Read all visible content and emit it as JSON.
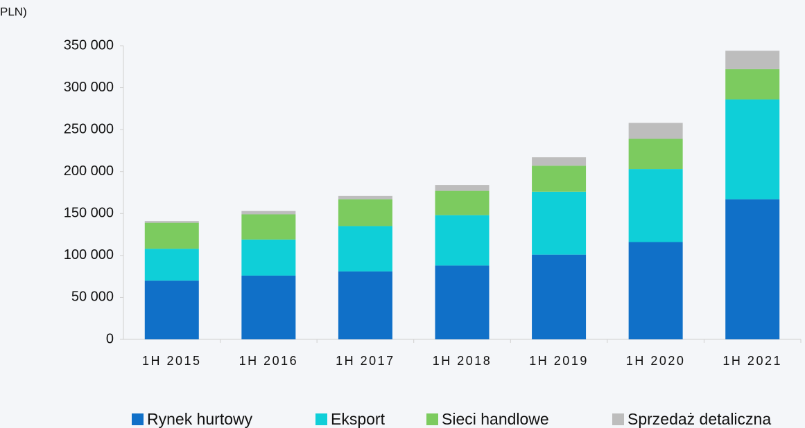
{
  "chart_data": {
    "type": "stacked_bar",
    "title": "PLN)",
    "categories": [
      "1H 2015",
      "1H 2016",
      "1H 2017",
      "1H 2018",
      "1H 2019",
      "1H 2020",
      "1H 2021"
    ],
    "series": [
      {
        "name": "Rynek hurtowy",
        "color": "#1070c8",
        "values": [
          70000,
          76000,
          81000,
          88000,
          101000,
          116000,
          167000
        ]
      },
      {
        "name": "Eksport",
        "color": "#0fcfd8",
        "values": [
          38000,
          43000,
          54000,
          60000,
          75000,
          87000,
          119000
        ]
      },
      {
        "name": "Sieci handlowe",
        "color": "#7ccb5f",
        "values": [
          31000,
          30000,
          32000,
          29000,
          31000,
          36000,
          36000
        ]
      },
      {
        "name": "Sprzedaż detaliczna",
        "color": "#bdbdbd",
        "values": [
          2000,
          4000,
          4000,
          7000,
          10000,
          19000,
          22000
        ]
      }
    ],
    "ylim": [
      0,
      350000
    ],
    "yticks": [
      0,
      {
        "value": 50000,
        "label": "50 000"
      },
      {
        "value": 100000,
        "label": "100 000"
      },
      {
        "value": 150000,
        "label": "150 000"
      },
      {
        "value": 200000,
        "label": "200 000"
      },
      {
        "value": 250000,
        "label": "250 000"
      },
      {
        "value": 300000,
        "label": "300 000"
      },
      {
        "value": 350000,
        "label": "350 000"
      }
    ],
    "legend": "bottom"
  }
}
